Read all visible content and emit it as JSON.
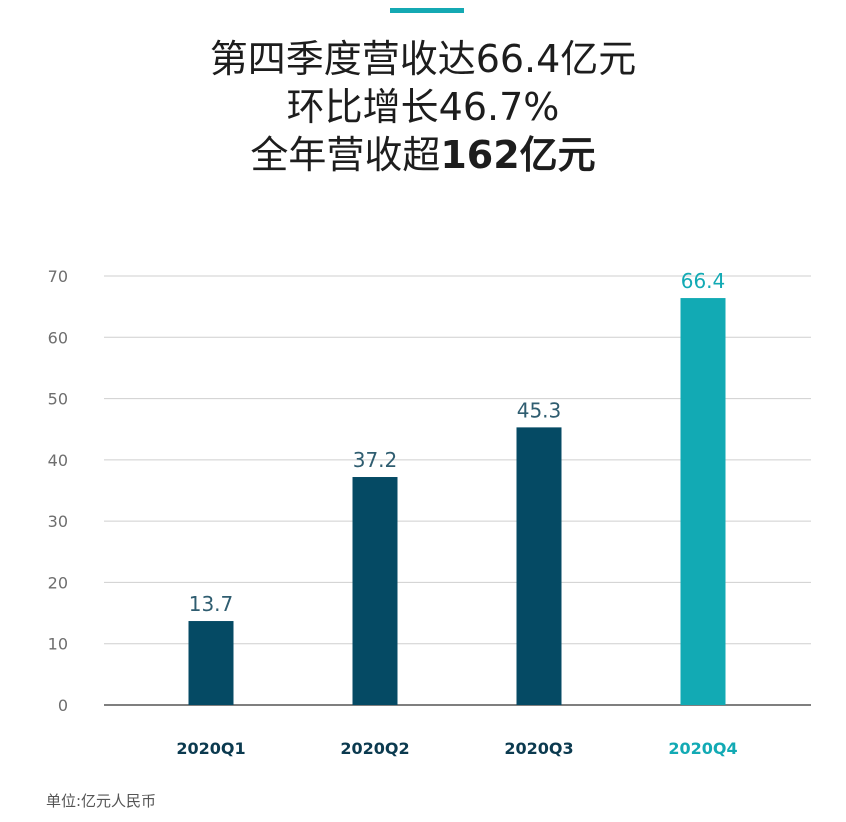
{
  "headline": {
    "line1": "第四季度营收达66.4亿元",
    "line2": "环比增长46.7%",
    "line3_prefix": "全年营收超",
    "line3_bold": "162亿元"
  },
  "unit_note": "单位:亿元人民币",
  "colors": {
    "accent": "#14a9b3",
    "bar_dark": "#054a64",
    "bar_highlight": "#12aab4",
    "grid": "#cfcfcf",
    "axis": "#333333",
    "tick_text": "#6e6e6e"
  },
  "chart_data": {
    "type": "bar",
    "categories": [
      "2020Q1",
      "2020Q2",
      "2020Q3",
      "2020Q4"
    ],
    "values": [
      13.7,
      37.2,
      45.3,
      66.4
    ],
    "value_labels": [
      "13.7",
      "37.2",
      "45.3",
      "66.4"
    ],
    "highlight_index": 3,
    "ylim": [
      0,
      70
    ],
    "yticks": [
      0,
      10,
      20,
      30,
      40,
      50,
      60,
      70
    ],
    "grid": true
  }
}
